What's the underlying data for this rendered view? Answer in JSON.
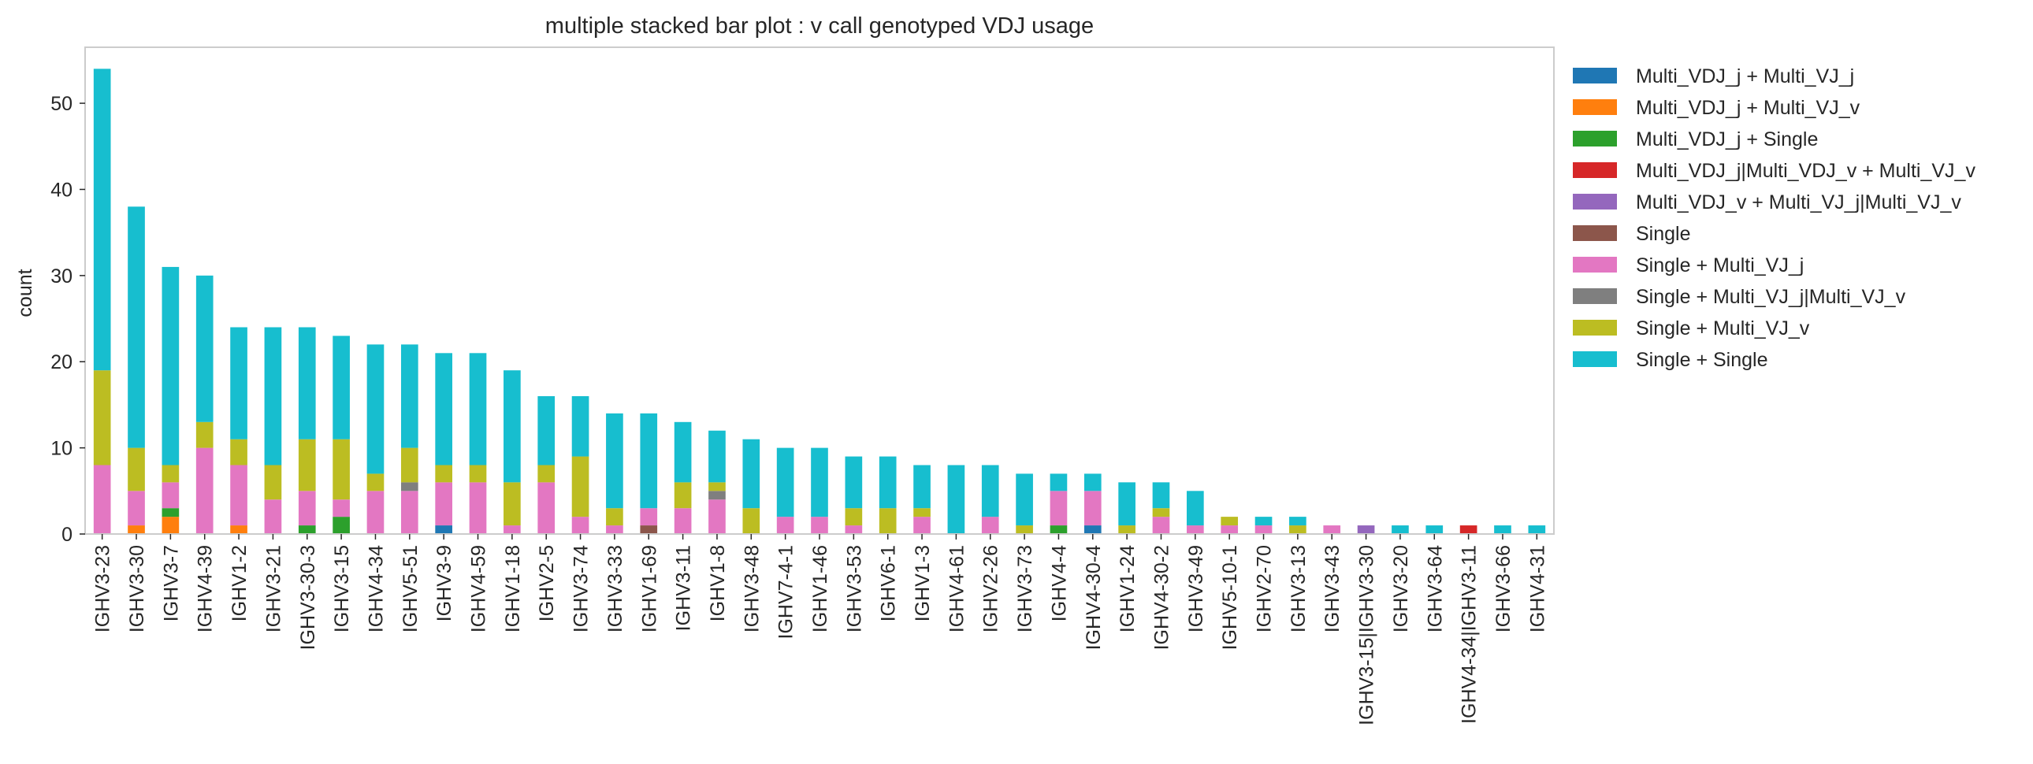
{
  "chart_data": {
    "type": "bar",
    "stacked": true,
    "title": "multiple stacked bar plot : v call genotyped VDJ usage",
    "xlabel": "",
    "ylabel": "count",
    "ylim": [
      0,
      56.5
    ],
    "yticks": [
      0,
      10,
      20,
      30,
      40,
      50
    ],
    "grid": false,
    "legend_position": "outside-right",
    "categories": [
      "IGHV3-23",
      "IGHV3-30",
      "IGHV3-7",
      "IGHV4-39",
      "IGHV1-2",
      "IGHV3-21",
      "IGHV3-30-3",
      "IGHV3-15",
      "IGHV4-34",
      "IGHV5-51",
      "IGHV3-9",
      "IGHV4-59",
      "IGHV1-18",
      "IGHV2-5",
      "IGHV3-74",
      "IGHV3-33",
      "IGHV1-69",
      "IGHV3-11",
      "IGHV1-8",
      "IGHV3-48",
      "IGHV7-4-1",
      "IGHV1-46",
      "IGHV3-53",
      "IGHV6-1",
      "IGHV1-3",
      "IGHV4-61",
      "IGHV2-26",
      "IGHV3-73",
      "IGHV4-4",
      "IGHV4-30-4",
      "IGHV1-24",
      "IGHV4-30-2",
      "IGHV3-49",
      "IGHV5-10-1",
      "IGHV2-70",
      "IGHV3-13",
      "IGHV3-43",
      "IGHV3-15|IGHV3-30",
      "IGHV3-20",
      "IGHV3-64",
      "IGHV4-34|IGHV3-11",
      "IGHV3-66",
      "IGHV4-31"
    ],
    "series": [
      {
        "name": "Multi_VDJ_j + Multi_VJ_j",
        "color": "#1f77b4",
        "values": [
          0,
          0,
          0,
          0,
          0,
          0,
          0,
          0,
          0,
          0,
          1,
          0,
          0,
          0,
          0,
          0,
          0,
          0,
          0,
          0,
          0,
          0,
          0,
          0,
          0,
          0,
          0,
          0,
          0,
          1,
          0,
          0,
          0,
          0,
          0,
          0,
          0,
          0,
          0,
          0,
          0,
          0,
          0
        ]
      },
      {
        "name": "Multi_VDJ_j + Multi_VJ_v",
        "color": "#ff7f0e",
        "values": [
          0,
          1,
          2,
          0,
          1,
          0,
          0,
          0,
          0,
          0,
          0,
          0,
          0,
          0,
          0,
          0,
          0,
          0,
          0,
          0,
          0,
          0,
          0,
          0,
          0,
          0,
          0,
          0,
          0,
          0,
          0,
          0,
          0,
          0,
          0,
          0,
          0,
          0,
          0,
          0,
          0,
          0,
          0
        ]
      },
      {
        "name": "Multi_VDJ_j + Single",
        "color": "#2ca02c",
        "values": [
          0,
          0,
          1,
          0,
          0,
          0,
          1,
          2,
          0,
          0,
          0,
          0,
          0,
          0,
          0,
          0,
          0,
          0,
          0,
          0,
          0,
          0,
          0,
          0,
          0,
          0,
          0,
          0,
          1,
          0,
          0,
          0,
          0,
          0,
          0,
          0,
          0,
          0,
          0,
          0,
          0,
          0,
          0
        ]
      },
      {
        "name": "Multi_VDJ_j|Multi_VDJ_v + Multi_VJ_v",
        "color": "#d62728",
        "values": [
          0,
          0,
          0,
          0,
          0,
          0,
          0,
          0,
          0,
          0,
          0,
          0,
          0,
          0,
          0,
          0,
          0,
          0,
          0,
          0,
          0,
          0,
          0,
          0,
          0,
          0,
          0,
          0,
          0,
          0,
          0,
          0,
          0,
          0,
          0,
          0,
          0,
          0,
          0,
          0,
          1,
          0,
          0
        ]
      },
      {
        "name": "Multi_VDJ_v + Multi_VJ_j|Multi_VJ_v",
        "color": "#9467bd",
        "values": [
          0,
          0,
          0,
          0,
          0,
          0,
          0,
          0,
          0,
          0,
          0,
          0,
          0,
          0,
          0,
          0,
          0,
          0,
          0,
          0,
          0,
          0,
          0,
          0,
          0,
          0,
          0,
          0,
          0,
          0,
          0,
          0,
          0,
          0,
          0,
          0,
          0,
          1,
          0,
          0,
          0,
          0,
          0
        ]
      },
      {
        "name": "Single",
        "color": "#8c564b",
        "values": [
          0,
          0,
          0,
          0,
          0,
          0,
          0,
          0,
          0,
          0,
          0,
          0,
          0,
          0,
          0,
          0,
          1,
          0,
          0,
          0,
          0,
          0,
          0,
          0,
          0,
          0,
          0,
          0,
          0,
          0,
          0,
          0,
          0,
          0,
          0,
          0,
          0,
          0,
          0,
          0,
          0,
          0,
          0
        ]
      },
      {
        "name": "Single + Multi_VJ_j",
        "color": "#e377c2",
        "values": [
          8,
          4,
          3,
          10,
          7,
          4,
          4,
          2,
          5,
          5,
          5,
          6,
          1,
          6,
          2,
          1,
          2,
          3,
          4,
          0,
          2,
          2,
          1,
          0,
          2,
          0,
          2,
          0,
          4,
          4,
          0,
          2,
          1,
          1,
          1,
          0,
          1,
          0,
          0,
          0,
          0,
          0,
          0
        ]
      },
      {
        "name": "Single + Multi_VJ_j|Multi_VJ_v",
        "color": "#7f7f7f",
        "values": [
          0,
          0,
          0,
          0,
          0,
          0,
          0,
          0,
          0,
          1,
          0,
          0,
          0,
          0,
          0,
          0,
          0,
          0,
          1,
          0,
          0,
          0,
          0,
          0,
          0,
          0,
          0,
          0,
          0,
          0,
          0,
          0,
          0,
          0,
          0,
          0,
          0,
          0,
          0,
          0,
          0,
          0,
          0
        ]
      },
      {
        "name": "Single + Multi_VJ_v",
        "color": "#bcbd22",
        "values": [
          11,
          5,
          2,
          3,
          3,
          4,
          6,
          7,
          2,
          4,
          2,
          2,
          5,
          2,
          7,
          2,
          0,
          3,
          1,
          3,
          0,
          0,
          2,
          3,
          1,
          0,
          0,
          1,
          0,
          0,
          1,
          1,
          0,
          1,
          0,
          1,
          0,
          0,
          0,
          0,
          0,
          0,
          0
        ]
      },
      {
        "name": "Single + Single",
        "color": "#17becf",
        "values": [
          35,
          28,
          23,
          17,
          13,
          16,
          13,
          12,
          15,
          12,
          13,
          13,
          13,
          8,
          7,
          11,
          11,
          7,
          6,
          8,
          8,
          8,
          6,
          6,
          5,
          8,
          6,
          6,
          2,
          2,
          5,
          3,
          4,
          0,
          1,
          1,
          0,
          0,
          1,
          1,
          0,
          1,
          1
        ]
      }
    ]
  }
}
